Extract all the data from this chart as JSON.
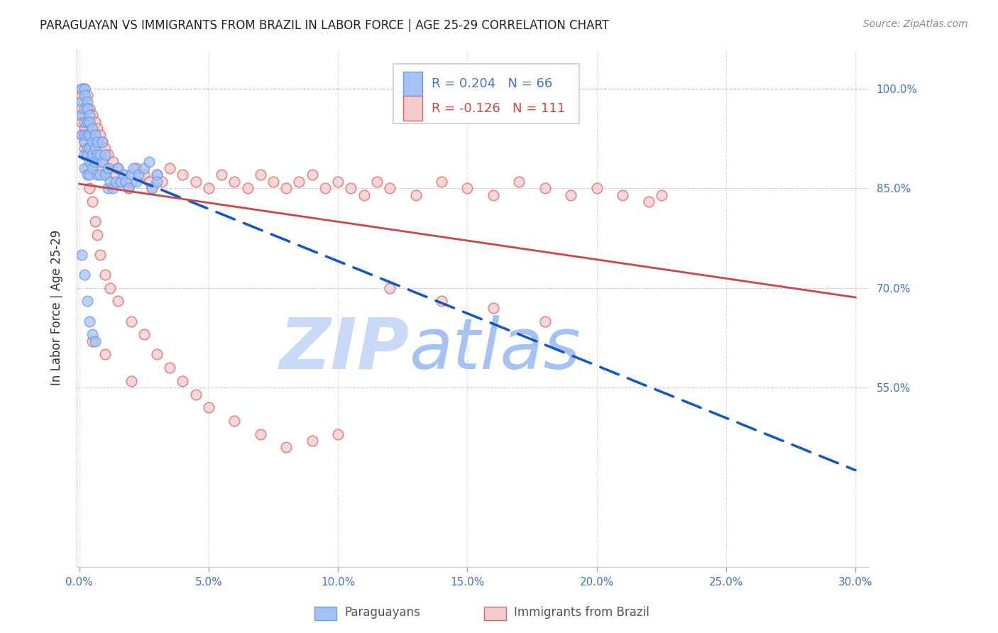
{
  "title": "PARAGUAYAN VS IMMIGRANTS FROM BRAZIL IN LABOR FORCE | AGE 25-29 CORRELATION CHART",
  "source": "Source: ZipAtlas.com",
  "ylabel": "In Labor Force | Age 25-29",
  "xlim": [
    -0.001,
    0.305
  ],
  "ylim": [
    0.28,
    1.06
  ],
  "xtick_vals": [
    0.0,
    0.05,
    0.1,
    0.15,
    0.2,
    0.25,
    0.3
  ],
  "xticklabels": [
    "0.0%",
    "5.0%",
    "10.0%",
    "15.0%",
    "20.0%",
    "25.0%",
    "30.0%"
  ],
  "ytick_vals": [
    0.55,
    0.7,
    0.85,
    1.0
  ],
  "yticklabels": [
    "55.0%",
    "70.0%",
    "85.0%",
    "100.0%"
  ],
  "R_blue": 0.204,
  "N_blue": 66,
  "R_pink": -0.126,
  "N_pink": 111,
  "blue_fill": "#a4c2f4",
  "blue_edge": "#6d9eeb",
  "pink_fill": "#f4cccc",
  "pink_edge": "#e06666",
  "blue_line_color": "#1155cc",
  "pink_line_color": "#cc4444",
  "tick_color": "#4472c4",
  "grid_color": "#b0b0b0",
  "title_color": "#222222",
  "source_color": "#888888",
  "ylabel_color": "#333333",
  "watermark_zip_color": "#c9daf8",
  "watermark_atlas_color": "#a4c2f4",
  "legend_box_color": "#eeeeee",
  "legend_text_blue": "#4472c4",
  "legend_text_pink": "#cc4444",
  "bottom_legend_color": "#555555",
  "background_color": "#ffffff",
  "blue_x": [
    0.001,
    0.001,
    0.001,
    0.001,
    0.002,
    0.002,
    0.002,
    0.002,
    0.002,
    0.002,
    0.002,
    0.002,
    0.003,
    0.003,
    0.003,
    0.003,
    0.003,
    0.003,
    0.003,
    0.004,
    0.004,
    0.004,
    0.004,
    0.004,
    0.004,
    0.005,
    0.005,
    0.005,
    0.005,
    0.006,
    0.006,
    0.006,
    0.007,
    0.007,
    0.007,
    0.008,
    0.008,
    0.009,
    0.009,
    0.01,
    0.01,
    0.011,
    0.011,
    0.012,
    0.013,
    0.014,
    0.015,
    0.016,
    0.017,
    0.018,
    0.019,
    0.02,
    0.021,
    0.022,
    0.023,
    0.025,
    0.027,
    0.028,
    0.03,
    0.03,
    0.001,
    0.002,
    0.003,
    0.004,
    0.005,
    0.006
  ],
  "blue_y": [
    1.0,
    0.98,
    0.96,
    0.93,
    1.0,
    0.99,
    0.97,
    0.95,
    0.93,
    0.92,
    0.9,
    0.88,
    0.98,
    0.97,
    0.95,
    0.93,
    0.91,
    0.9,
    0.87,
    0.96,
    0.95,
    0.93,
    0.91,
    0.89,
    0.87,
    0.94,
    0.92,
    0.9,
    0.88,
    0.93,
    0.91,
    0.89,
    0.92,
    0.9,
    0.87,
    0.9,
    0.87,
    0.92,
    0.89,
    0.9,
    0.87,
    0.88,
    0.85,
    0.86,
    0.85,
    0.86,
    0.88,
    0.86,
    0.87,
    0.86,
    0.85,
    0.87,
    0.88,
    0.86,
    0.87,
    0.88,
    0.89,
    0.85,
    0.87,
    0.86,
    0.75,
    0.72,
    0.68,
    0.65,
    0.63,
    0.62
  ],
  "pink_x": [
    0.001,
    0.001,
    0.001,
    0.001,
    0.002,
    0.002,
    0.002,
    0.002,
    0.002,
    0.003,
    0.003,
    0.003,
    0.003,
    0.003,
    0.004,
    0.004,
    0.004,
    0.004,
    0.005,
    0.005,
    0.005,
    0.005,
    0.006,
    0.006,
    0.006,
    0.007,
    0.007,
    0.007,
    0.008,
    0.008,
    0.008,
    0.009,
    0.009,
    0.01,
    0.01,
    0.011,
    0.012,
    0.013,
    0.014,
    0.015,
    0.016,
    0.017,
    0.018,
    0.019,
    0.02,
    0.022,
    0.025,
    0.027,
    0.028,
    0.03,
    0.032,
    0.035,
    0.04,
    0.045,
    0.05,
    0.055,
    0.06,
    0.065,
    0.07,
    0.075,
    0.08,
    0.085,
    0.09,
    0.095,
    0.1,
    0.105,
    0.11,
    0.115,
    0.12,
    0.13,
    0.14,
    0.15,
    0.16,
    0.17,
    0.18,
    0.19,
    0.2,
    0.21,
    0.22,
    0.225,
    0.001,
    0.002,
    0.003,
    0.003,
    0.004,
    0.005,
    0.006,
    0.007,
    0.008,
    0.01,
    0.012,
    0.015,
    0.02,
    0.025,
    0.03,
    0.035,
    0.04,
    0.045,
    0.05,
    0.06,
    0.07,
    0.08,
    0.09,
    0.1,
    0.12,
    0.14,
    0.16,
    0.18,
    0.005,
    0.01,
    0.02
  ],
  "pink_y": [
    1.0,
    0.99,
    0.97,
    0.95,
    1.0,
    0.98,
    0.96,
    0.94,
    0.91,
    0.99,
    0.97,
    0.95,
    0.93,
    0.9,
    0.97,
    0.95,
    0.93,
    0.91,
    0.96,
    0.94,
    0.92,
    0.89,
    0.95,
    0.93,
    0.9,
    0.94,
    0.92,
    0.89,
    0.93,
    0.91,
    0.88,
    0.92,
    0.89,
    0.91,
    0.87,
    0.9,
    0.88,
    0.89,
    0.87,
    0.88,
    0.86,
    0.87,
    0.86,
    0.85,
    0.86,
    0.88,
    0.87,
    0.86,
    0.85,
    0.87,
    0.86,
    0.88,
    0.87,
    0.86,
    0.85,
    0.87,
    0.86,
    0.85,
    0.87,
    0.86,
    0.85,
    0.86,
    0.87,
    0.85,
    0.86,
    0.85,
    0.84,
    0.86,
    0.85,
    0.84,
    0.86,
    0.85,
    0.84,
    0.86,
    0.85,
    0.84,
    0.85,
    0.84,
    0.83,
    0.84,
    0.93,
    0.92,
    0.9,
    0.88,
    0.85,
    0.83,
    0.8,
    0.78,
    0.75,
    0.72,
    0.7,
    0.68,
    0.65,
    0.63,
    0.6,
    0.58,
    0.56,
    0.54,
    0.52,
    0.5,
    0.48,
    0.46,
    0.47,
    0.48,
    0.7,
    0.68,
    0.67,
    0.65,
    0.62,
    0.6,
    0.56
  ]
}
